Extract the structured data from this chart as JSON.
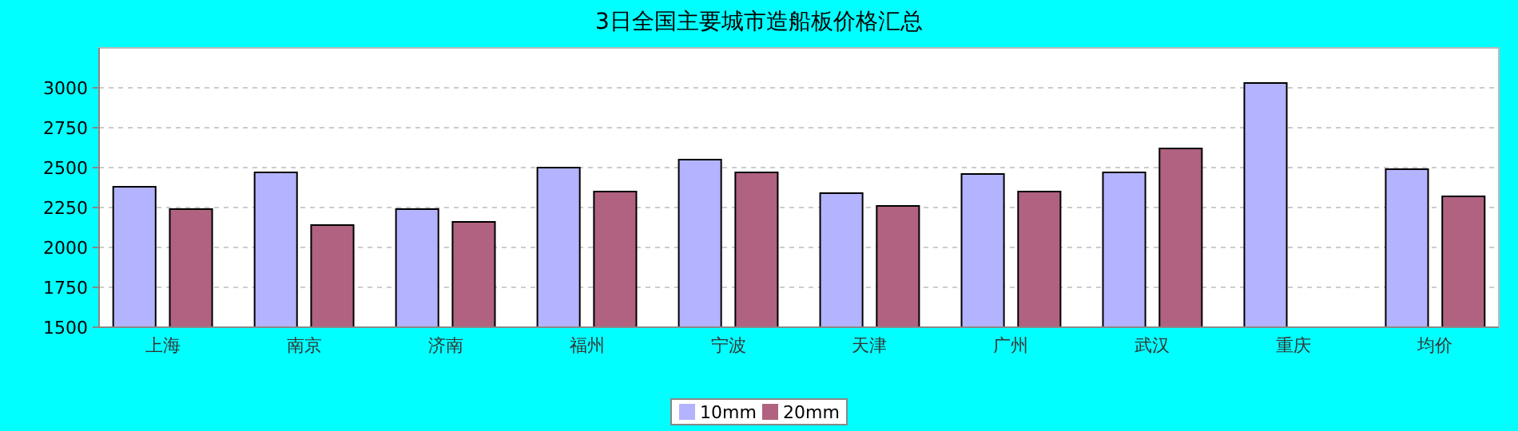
{
  "chart_data": {
    "type": "bar",
    "title": "3日全国主要城市造船板价格汇总",
    "categories": [
      "上海",
      "南京",
      "济南",
      "福州",
      "宁波",
      "天津",
      "广州",
      "武汉",
      "重庆",
      "均价"
    ],
    "series": [
      {
        "name": "10mm",
        "color": "#b3b3ff",
        "values": [
          2380,
          2470,
          2240,
          2500,
          2550,
          2340,
          2460,
          2470,
          3030,
          2490
        ]
      },
      {
        "name": "20mm",
        "color": "#b06280",
        "values": [
          2240,
          2140,
          2160,
          2350,
          2470,
          2260,
          2350,
          2620,
          null,
          2320
        ]
      }
    ],
    "ylim": [
      1500,
      3250
    ],
    "yticks": [
      1500,
      1750,
      2000,
      2250,
      2500,
      2750,
      3000
    ],
    "grid": "y",
    "legend": "bottom"
  }
}
